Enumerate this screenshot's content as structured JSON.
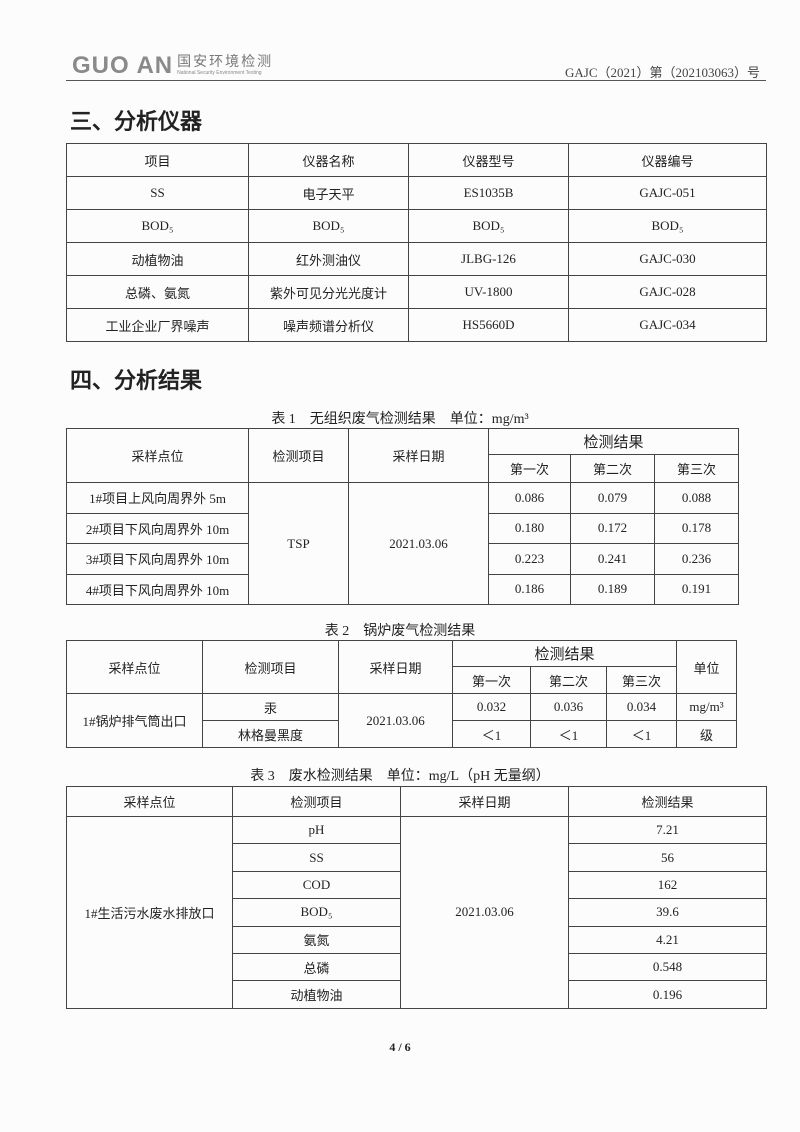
{
  "header": {
    "logo_mark": "GUO AN",
    "logo_cn": "国安环境检测",
    "logo_en": "National Security Environment Testing",
    "doc_no": "GAJC（2021）第（202103063）号"
  },
  "section3": {
    "title": "三、分析仪器",
    "headers": [
      "项目",
      "仪器名称",
      "仪器型号",
      "仪器编号"
    ],
    "rows": [
      [
        "SS",
        "电子天平",
        "ES1035B",
        "GAJC-051"
      ],
      [
        "BOD₅",
        "BOD₅",
        "BOD₅",
        "BOD₅"
      ],
      [
        "动植物油",
        "红外测油仪",
        "JLBG-126",
        "GAJC-030"
      ],
      [
        "总磷、氨氮",
        "紫外可见分光光度计",
        "UV-1800",
        "GAJC-028"
      ],
      [
        "工业企业厂界噪声",
        "噪声频谱分析仪",
        "HS5660D",
        "GAJC-034"
      ]
    ]
  },
  "section4": {
    "title": "四、分析结果"
  },
  "table1": {
    "caption": "表 1　无组织废气检测结果　单位：mg/m³",
    "h_point": "采样点位",
    "h_item": "检测项目",
    "h_date": "采样日期",
    "h_result": "检测结果",
    "h_runs": [
      "第一次",
      "第二次",
      "第三次"
    ],
    "item": "TSP",
    "date": "2021.03.06",
    "rows": [
      {
        "point": "1#项目上风向周界外 5m",
        "v": [
          "0.086",
          "0.079",
          "0.088"
        ]
      },
      {
        "point": "2#项目下风向周界外 10m",
        "v": [
          "0.180",
          "0.172",
          "0.178"
        ]
      },
      {
        "point": "3#项目下风向周界外 10m",
        "v": [
          "0.223",
          "0.241",
          "0.236"
        ]
      },
      {
        "point": "4#项目下风向周界外 10m",
        "v": [
          "0.186",
          "0.189",
          "0.191"
        ]
      }
    ]
  },
  "table2": {
    "caption": "表 2　锅炉废气检测结果",
    "h_point": "采样点位",
    "h_item": "检测项目",
    "h_date": "采样日期",
    "h_result": "检测结果",
    "h_unit": "单位",
    "h_runs": [
      "第一次",
      "第二次",
      "第三次"
    ],
    "point": "1#锅炉排气筒出口",
    "date": "2021.03.06",
    "rows": [
      {
        "item": "汞",
        "v": [
          "0.032",
          "0.036",
          "0.034"
        ],
        "unit": "mg/m³"
      },
      {
        "item": "林格曼黑度",
        "v": [
          "＜1",
          "＜1",
          "＜1"
        ],
        "unit": "级"
      }
    ]
  },
  "table3": {
    "caption": "表 3　废水检测结果　单位：mg/L（pH 无量纲）",
    "headers": [
      "采样点位",
      "检测项目",
      "采样日期",
      "检测结果"
    ],
    "point": "1#生活污水废水排放口",
    "date": "2021.03.06",
    "rows": [
      [
        "pH",
        "7.21"
      ],
      [
        "SS",
        "56"
      ],
      [
        "COD",
        "162"
      ],
      [
        "BOD₅",
        "39.6"
      ],
      [
        "氨氮",
        "4.21"
      ],
      [
        "总磷",
        "0.548"
      ],
      [
        "动植物油",
        "0.196"
      ]
    ]
  },
  "footer": {
    "page": "4 / 6"
  }
}
